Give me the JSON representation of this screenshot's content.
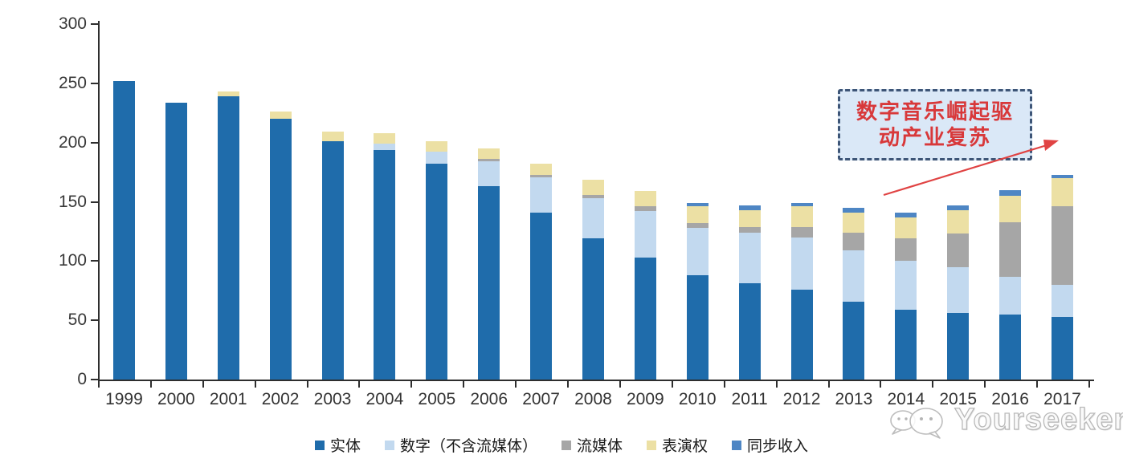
{
  "chart_data": {
    "type": "bar",
    "stacked": true,
    "title": "",
    "categories": [
      "1999",
      "2000",
      "2001",
      "2002",
      "2003",
      "2004",
      "2005",
      "2006",
      "2007",
      "2008",
      "2009",
      "2010",
      "2011",
      "2012",
      "2013",
      "2014",
      "2015",
      "2016",
      "2017"
    ],
    "series": [
      {
        "name": "实体",
        "color": "#1F6CAB",
        "values": [
          252,
          234,
          239,
          220,
          201,
          194,
          182,
          163,
          141,
          119,
          103,
          88,
          81,
          76,
          66,
          59,
          56,
          55,
          53
        ]
      },
      {
        "name": "数字（不含流媒体）",
        "color": "#C2D9EF",
        "values": [
          0,
          0,
          0,
          0,
          0,
          5,
          10,
          21,
          30,
          34,
          39,
          40,
          43,
          44,
          43,
          41,
          39,
          32,
          27
        ]
      },
      {
        "name": "流媒体",
        "color": "#A6A6A6",
        "values": [
          0,
          0,
          0,
          0,
          0,
          0,
          0,
          2,
          2,
          3,
          4,
          4,
          5,
          9,
          15,
          19,
          28,
          46,
          66
        ]
      },
      {
        "name": "表演权",
        "color": "#ECE0A4",
        "values": [
          0,
          0,
          4,
          6,
          8,
          9,
          9,
          9,
          9,
          13,
          13,
          14,
          14,
          17,
          17,
          18,
          20,
          22,
          24
        ]
      },
      {
        "name": "同步收入",
        "color": "#4E86C4",
        "values": [
          0,
          0,
          0,
          0,
          0,
          0,
          0,
          0,
          0,
          0,
          0,
          3,
          4,
          3,
          4,
          4,
          4,
          5,
          3
        ]
      }
    ],
    "ylim": [
      0,
      300
    ],
    "yticks": [
      0,
      50,
      100,
      150,
      200,
      250,
      300
    ],
    "grid": false,
    "legend_position": "bottom",
    "annotation": {
      "line1": "数字音乐崛起驱",
      "line2": "动产业复苏"
    }
  },
  "watermark": {
    "text": "Yourseeker"
  },
  "colors": {
    "axis": "#2e2e2e",
    "annotation_border": "#3d5577",
    "annotation_background": "#dae8f7",
    "annotation_text": "#d8383a",
    "arrow": "#e04343",
    "watermark": "#bdbdbd"
  }
}
